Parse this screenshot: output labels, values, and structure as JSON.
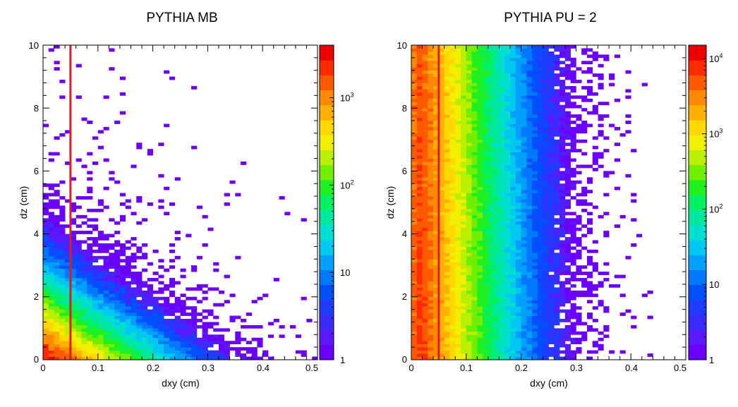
{
  "chart_data": [
    {
      "type": "heatmap",
      "title": "PYTHIA MB",
      "xlabel": "dxy (cm)",
      "ylabel": "dz (cm)",
      "xlim": [
        0,
        0.5
      ],
      "ylim": [
        0,
        10
      ],
      "x_ticks": [
        "0",
        "0.1",
        "0.2",
        "0.3",
        "0.4",
        "0.5"
      ],
      "y_ticks": [
        "0",
        "2",
        "4",
        "6",
        "8",
        "10"
      ],
      "z_scale": "log",
      "z_range": [
        1,
        4000
      ],
      "z_ticks": [
        {
          "value": 1,
          "label": "1"
        },
        {
          "value": 10,
          "label": "10"
        },
        {
          "value": 100,
          "base": "10",
          "exp": "2"
        },
        {
          "value": 1000,
          "base": "10",
          "exp": "3"
        }
      ],
      "bins": {
        "nx": 50,
        "ny": 100
      },
      "density_model": {
        "peak_counts": 4000,
        "x_decay_cm": 0.045,
        "y_decay_cm": 0.55,
        "sparse_tail": true
      },
      "cut_line": {
        "x": 0.05,
        "y_from": 0,
        "y_to": 10,
        "color": "#e31a1c"
      }
    },
    {
      "type": "heatmap",
      "title": "PYTHIA PU = 2",
      "xlabel": "dxy (cm)",
      "ylabel": "dz (cm)",
      "xlim": [
        0,
        0.5
      ],
      "ylim": [
        0,
        10
      ],
      "x_ticks": [
        "0",
        "0.1",
        "0.2",
        "0.3",
        "0.4",
        "0.5"
      ],
      "y_ticks": [
        "0",
        "2",
        "4",
        "6",
        "8",
        "10"
      ],
      "z_scale": "log",
      "z_range": [
        1,
        15000
      ],
      "z_ticks": [
        {
          "value": 1,
          "label": "1"
        },
        {
          "value": 10,
          "label": "10"
        },
        {
          "value": 100,
          "base": "10",
          "exp": "2"
        },
        {
          "value": 1000,
          "base": "10",
          "exp": "3"
        },
        {
          "value": 10000,
          "base": "10",
          "exp": "4"
        }
      ],
      "bins": {
        "nx": 50,
        "ny": 100
      },
      "density_model": {
        "peak_counts": 12000,
        "x_decay_cm": 0.032,
        "y_decay_cm": 40,
        "sparse_tail": true
      },
      "cut_line": {
        "x": 0.05,
        "y_from": 0,
        "y_to": 10,
        "color": "#e31a1c"
      }
    }
  ],
  "palette": [
    "#6a00ff",
    "#5a18ff",
    "#3c2bff",
    "#1e3cff",
    "#0050ff",
    "#0078ff",
    "#00a0ff",
    "#00c8f0",
    "#00e0d0",
    "#00e8a0",
    "#00f060",
    "#20f020",
    "#70f000",
    "#b8f000",
    "#f0f000",
    "#ffd800",
    "#ffb000",
    "#ff8a00",
    "#ff5a00",
    "#ff2a00",
    "#ee0000"
  ]
}
